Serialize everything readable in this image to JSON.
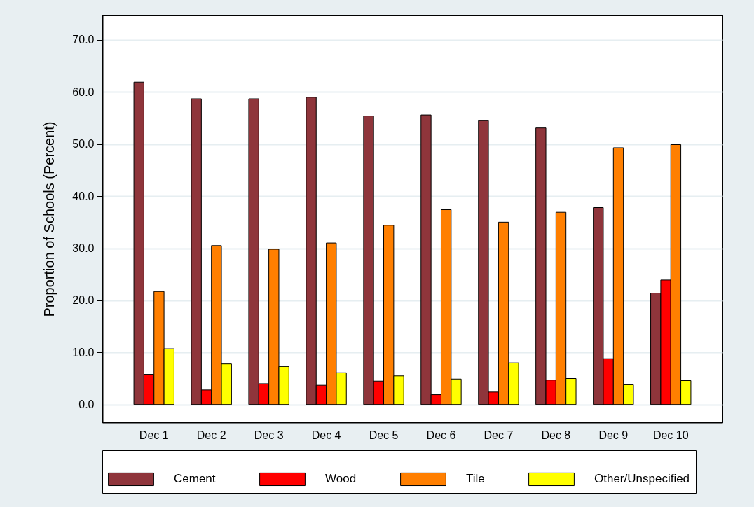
{
  "chart_data": {
    "type": "bar",
    "ylabel": "Proportion of Schools (Percent)",
    "categories": [
      "Dec 1",
      "Dec 2",
      "Dec 3",
      "Dec 4",
      "Dec 5",
      "Dec 6",
      "Dec 7",
      "Dec 8",
      "Dec 9",
      "Dec 10"
    ],
    "series": [
      {
        "name": "Cement",
        "color": "#8f353b",
        "values": [
          61.9,
          58.7,
          58.7,
          59.0,
          55.4,
          55.6,
          54.5,
          53.1,
          37.8,
          21.4
        ]
      },
      {
        "name": "Wood",
        "color": "#ff0000",
        "values": [
          5.8,
          2.8,
          4.0,
          3.7,
          4.5,
          1.9,
          2.4,
          4.7,
          8.8,
          23.9
        ]
      },
      {
        "name": "Tile",
        "color": "#ff7f00",
        "values": [
          21.7,
          30.5,
          29.8,
          31.0,
          34.4,
          37.4,
          35.0,
          36.9,
          49.3,
          49.9
        ]
      },
      {
        "name": "Other/Unspecified",
        "color": "#ffff00",
        "values": [
          10.7,
          7.8,
          7.3,
          6.1,
          5.5,
          4.9,
          8.0,
          5.0,
          3.8,
          4.6
        ]
      }
    ],
    "ylim": [
      -3.4,
      74.7
    ],
    "yticks": [
      {
        "value": 0,
        "label": "0.0"
      },
      {
        "value": 10,
        "label": "10.0"
      },
      {
        "value": 20,
        "label": "20.0"
      },
      {
        "value": 30,
        "label": "30.0"
      },
      {
        "value": 40,
        "label": "40.0"
      },
      {
        "value": 50,
        "label": "50.0"
      },
      {
        "value": 60,
        "label": "60.0"
      },
      {
        "value": 70,
        "label": "70.0"
      }
    ],
    "grid": "y",
    "legend": "bottom"
  }
}
